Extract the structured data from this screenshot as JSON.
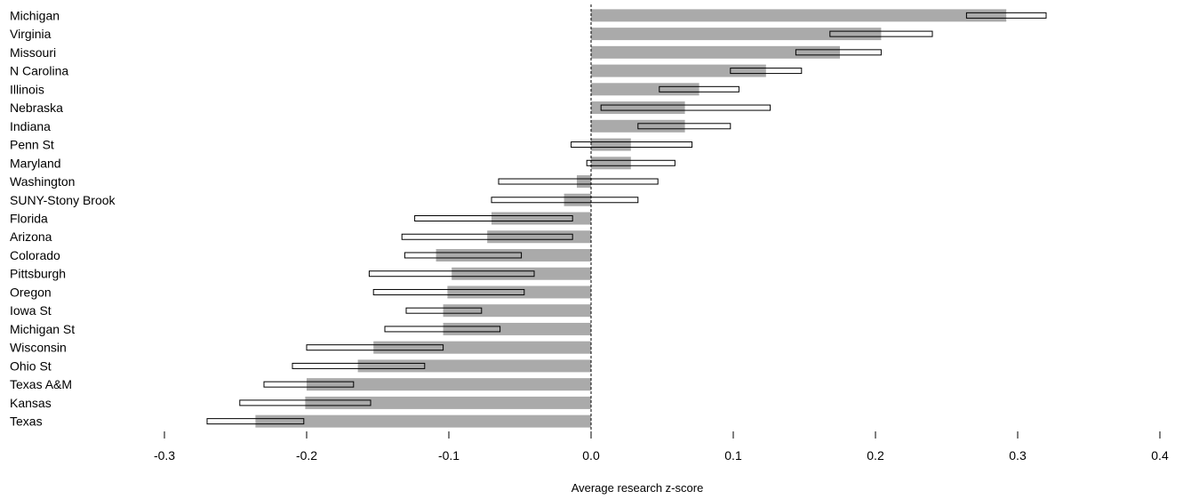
{
  "chart_data": {
    "type": "bar",
    "orientation": "horizontal",
    "xlabel": "Average research z-score",
    "xlim": [
      -0.3,
      0.4
    ],
    "xticks": [
      "-0.3",
      "-0.2",
      "-0.1",
      "0.0",
      "0.1",
      "0.2",
      "0.3",
      "0.4"
    ],
    "xtick_values": [
      -0.3,
      -0.2,
      -0.1,
      0.0,
      0.1,
      0.2,
      0.3,
      0.4
    ],
    "grid": false,
    "legend": "none",
    "colors": {
      "bar": "#aaaaaa",
      "interval": "#ffffff",
      "stroke": "#000000"
    },
    "categories": [
      "Michigan",
      "Virginia",
      "Missouri",
      "N Carolina",
      "Illinois",
      "Nebraska",
      "Indiana",
      "Penn St",
      "Maryland",
      "Washington",
      "SUNY-Stony Brook",
      "Florida",
      "Arizona",
      "Colorado",
      "Pittsburgh",
      "Oregon",
      "Iowa St",
      "Michigan St",
      "Wisconsin",
      "Ohio St",
      "Texas A&M",
      "Kansas",
      "Texas"
    ],
    "series": [
      {
        "values": [
          0.292,
          0.204,
          0.175,
          0.123,
          0.076,
          0.066,
          0.066,
          0.028,
          0.028,
          -0.01,
          -0.019,
          -0.07,
          -0.073,
          -0.109,
          -0.098,
          -0.101,
          -0.104,
          -0.104,
          -0.153,
          -0.164,
          -0.2,
          -0.201,
          -0.236
        ]
      },
      {
        "values": [
          [
            0.264,
            0.32
          ],
          [
            0.168,
            0.24
          ],
          [
            0.144,
            0.204
          ],
          [
            0.098,
            0.148
          ],
          [
            0.048,
            0.104
          ],
          [
            0.007,
            0.126
          ],
          [
            0.033,
            0.098
          ],
          [
            -0.014,
            0.071
          ],
          [
            -0.003,
            0.059
          ],
          [
            -0.065,
            0.047
          ],
          [
            -0.07,
            0.033
          ],
          [
            -0.124,
            -0.013
          ],
          [
            -0.133,
            -0.013
          ],
          [
            -0.131,
            -0.049
          ],
          [
            -0.156,
            -0.04
          ],
          [
            -0.153,
            -0.047
          ],
          [
            -0.13,
            -0.077
          ],
          [
            -0.145,
            -0.064
          ],
          [
            -0.2,
            -0.104
          ],
          [
            -0.21,
            -0.117
          ],
          [
            -0.23,
            -0.167
          ],
          [
            -0.247,
            -0.155
          ],
          [
            -0.27,
            -0.202
          ]
        ]
      }
    ]
  }
}
